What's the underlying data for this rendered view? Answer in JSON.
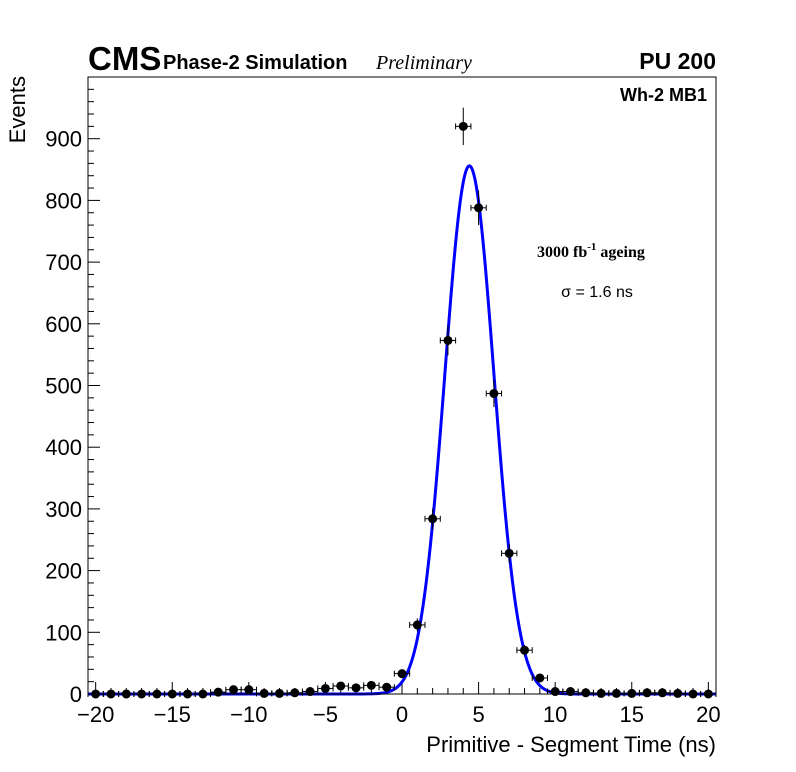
{
  "header": {
    "experiment": "CMS",
    "subtitle": "Phase-2 Simulation",
    "status": "Preliminary",
    "pileup": "PU 200"
  },
  "labels": {
    "region": "Wh-2 MB1",
    "ageing_main": "3000 fb",
    "ageing_sup": "-1",
    "ageing_rest": " ageing",
    "sigma": "σ = 1.6 ns"
  },
  "chart_data": {
    "type": "scatter",
    "xlabel": "Primitive - Segment Time (ns)",
    "ylabel": "Events",
    "xlim": [
      -20.5,
      20.5
    ],
    "ylim": [
      0,
      1000
    ],
    "xticks": [
      -20,
      -15,
      -10,
      -5,
      0,
      5,
      10,
      15,
      20
    ],
    "xtick_labels": [
      "−20",
      "−15",
      "−10",
      "−5",
      "0",
      "5",
      "10",
      "15",
      "20"
    ],
    "yticks": [
      0,
      100,
      200,
      300,
      400,
      500,
      600,
      700,
      800,
      900
    ],
    "ytick_labels": [
      "0",
      "100",
      "200",
      "300",
      "400",
      "500",
      "600",
      "700",
      "800",
      "900"
    ],
    "grid": false,
    "series": [
      {
        "kind": "points_with_errors",
        "color": "#000000",
        "x_halfwidth": 0.5,
        "points": [
          {
            "x": -20,
            "y": 0
          },
          {
            "x": -19,
            "y": 0
          },
          {
            "x": -18,
            "y": 0
          },
          {
            "x": -17,
            "y": 0
          },
          {
            "x": -16,
            "y": 0
          },
          {
            "x": -15,
            "y": 0
          },
          {
            "x": -14,
            "y": 0
          },
          {
            "x": -13,
            "y": 0
          },
          {
            "x": -12,
            "y": 3
          },
          {
            "x": -11,
            "y": 7
          },
          {
            "x": -10,
            "y": 7
          },
          {
            "x": -9,
            "y": 1
          },
          {
            "x": -8,
            "y": 1
          },
          {
            "x": -7,
            "y": 2
          },
          {
            "x": -6,
            "y": 4
          },
          {
            "x": -5,
            "y": 9
          },
          {
            "x": -4,
            "y": 13
          },
          {
            "x": -3,
            "y": 10
          },
          {
            "x": -2,
            "y": 14
          },
          {
            "x": -1,
            "y": 11
          },
          {
            "x": 0,
            "y": 33
          },
          {
            "x": 1,
            "y": 112
          },
          {
            "x": 2,
            "y": 284
          },
          {
            "x": 3,
            "y": 573
          },
          {
            "x": 4,
            "y": 920
          },
          {
            "x": 5,
            "y": 788
          },
          {
            "x": 6,
            "y": 487
          },
          {
            "x": 7,
            "y": 228
          },
          {
            "x": 8,
            "y": 71
          },
          {
            "x": 9,
            "y": 26
          },
          {
            "x": 10,
            "y": 4
          },
          {
            "x": 11,
            "y": 4
          },
          {
            "x": 12,
            "y": 2
          },
          {
            "x": 13,
            "y": 1
          },
          {
            "x": 14,
            "y": 1
          },
          {
            "x": 15,
            "y": 1
          },
          {
            "x": 16,
            "y": 2
          },
          {
            "x": 17,
            "y": 2
          },
          {
            "x": 18,
            "y": 1
          },
          {
            "x": 19,
            "y": 0
          },
          {
            "x": 20,
            "y": 0
          }
        ]
      },
      {
        "kind": "gaussian_fit",
        "color": "#0000ff",
        "amplitude": 856,
        "mean": 4.4,
        "sigma": 1.6
      }
    ]
  }
}
